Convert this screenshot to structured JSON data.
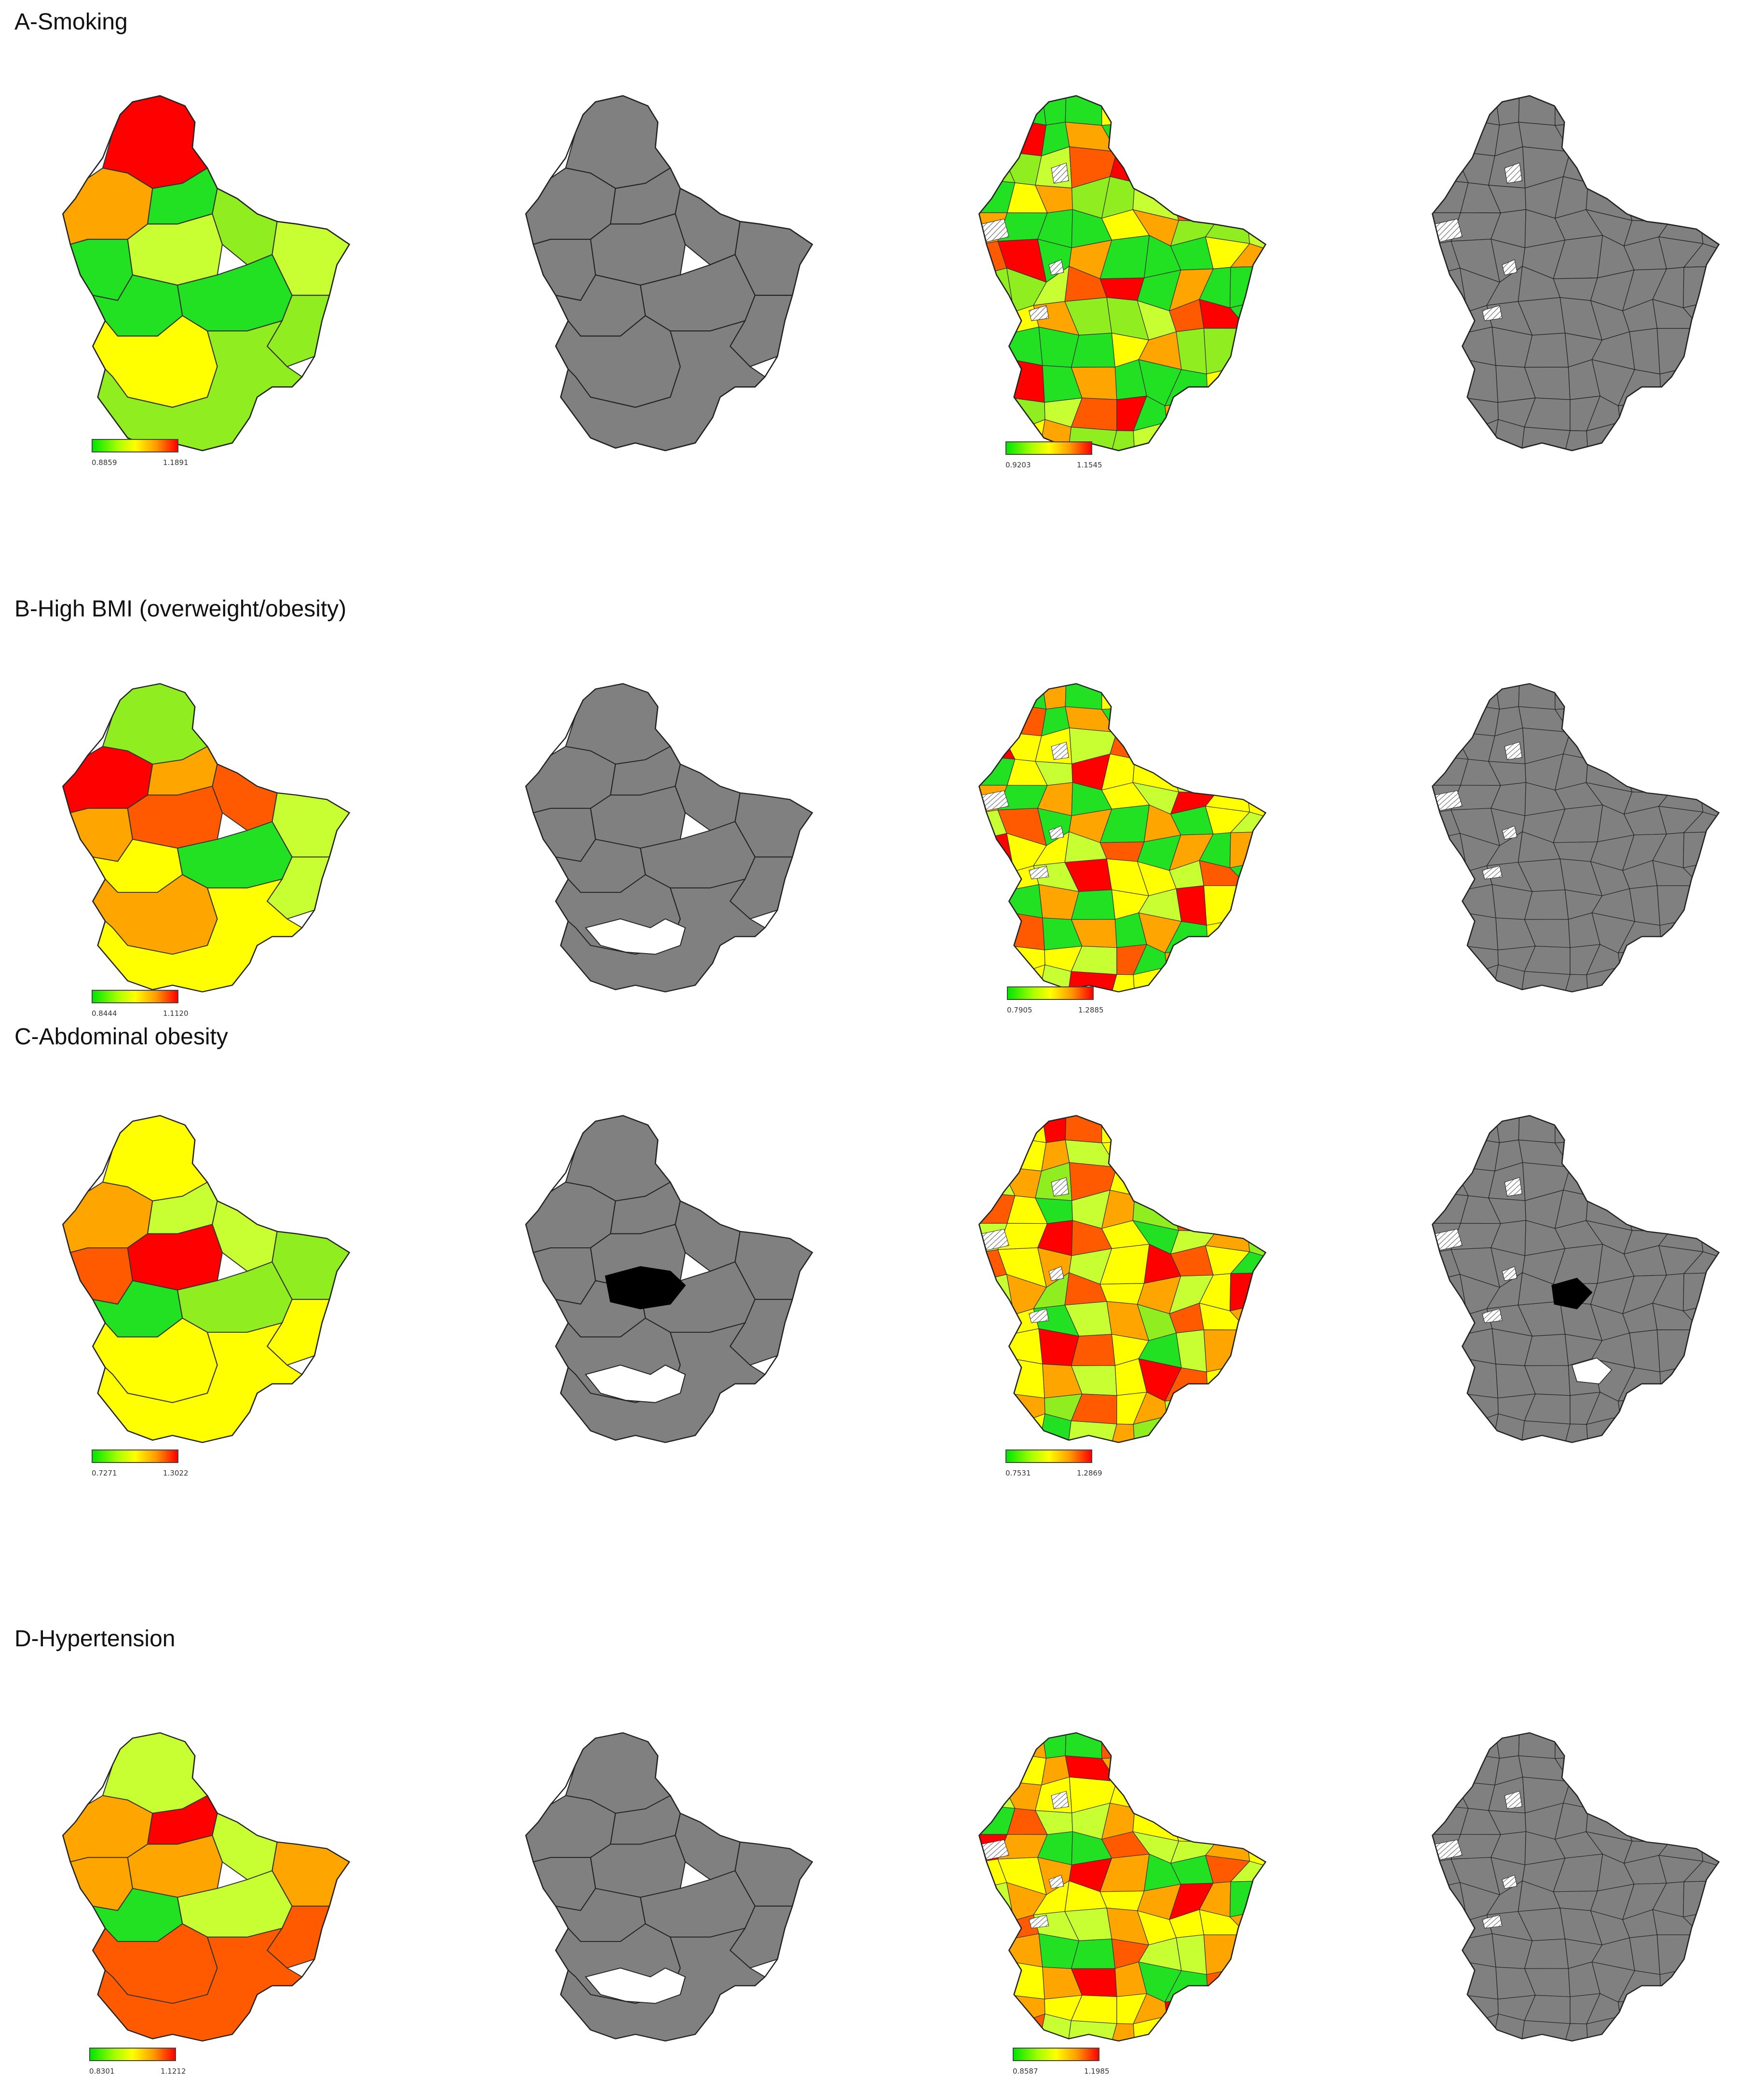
{
  "sections": [
    {
      "title": "A-Smoking",
      "canton_legend": {
        "min": "0.8859",
        "max": "1.1891"
      },
      "commune_legend": {
        "min": "0.9203",
        "max": "1.1545"
      },
      "canton_fills": [
        "red",
        "orange",
        "green",
        "green",
        "yellowgreen",
        "lime",
        "yellowgreen",
        "green",
        "green",
        "lime",
        "yellow",
        "lime"
      ],
      "commune_fills": [
        "orange",
        "orange",
        "red",
        "green",
        "yellowgreen",
        "green",
        "lime",
        "green",
        "yellow",
        "orangered",
        "green",
        "lime"
      ],
      "canton_sig": {
        "hole": false,
        "black": false
      },
      "commune_sig": {
        "hole": false,
        "black": false
      }
    },
    {
      "title": "B-High BMI (overweight/obesity)",
      "canton_legend": {
        "min": "0.8444",
        "max": "1.1120"
      },
      "commune_legend": {
        "min": "0.7905",
        "max": "1.2885"
      },
      "canton_fills": [
        "lime",
        "red",
        "orange",
        "orange",
        "orangered",
        "orangered",
        "yellowgreen",
        "yellow",
        "green",
        "yellowgreen",
        "orange",
        "yellow"
      ],
      "commune_fills": [
        "yellowgreen",
        "orange",
        "yellow",
        "orange",
        "yellowgreen",
        "orangered",
        "green",
        "yellow",
        "green",
        "red",
        "green",
        "yellow"
      ],
      "canton_sig": {
        "hole": true,
        "black": false
      },
      "commune_sig": {
        "hole": false,
        "black": false
      }
    },
    {
      "title": "C-Abdominal obesity",
      "canton_legend": {
        "min": "0.7271",
        "max": "1.3022"
      },
      "commune_legend": {
        "min": "0.7531",
        "max": "1.2869"
      },
      "canton_fills": [
        "yellow",
        "orange",
        "yellowgreen",
        "orangered",
        "red",
        "yellowgreen",
        "lime",
        "green",
        "lime",
        "yellow",
        "yellow",
        "yellow"
      ],
      "commune_fills": [
        "yellowgreen",
        "orange",
        "yellow",
        "orangered",
        "red",
        "orange",
        "yellowgreen",
        "green",
        "yellow",
        "orangered",
        "lime",
        "yellow"
      ],
      "canton_sig": {
        "hole": true,
        "black": true
      },
      "commune_sig": {
        "hole": true,
        "black": true
      }
    },
    {
      "title": "D-Hypertension",
      "canton_legend": {
        "min": "0.8301",
        "max": "1.1212"
      },
      "commune_legend": {
        "min": "0.8587",
        "max": "1.1985"
      },
      "canton_fills": [
        "yellowgreen",
        "orange",
        "red",
        "orange",
        "orange",
        "yellowgreen",
        "orange",
        "green",
        "yellowgreen",
        "orangered",
        "orangered",
        "orangered"
      ],
      "commune_fills": [
        "green",
        "yellow",
        "orange",
        "yellowgreen",
        "orange",
        "orangered",
        "yellow",
        "green",
        "orange",
        "red",
        "yellowgreen",
        "yellow"
      ],
      "canton_sig": {
        "hole": true,
        "black": false
      },
      "commune_sig": {
        "hole": false,
        "black": false
      }
    }
  ],
  "colors": {
    "red": "#ff0000",
    "orangered": "#ff5a00",
    "orange": "#ffa500",
    "yellow": "#ffff00",
    "yellowgreen": "#c8ff32",
    "lime": "#90ee20",
    "green": "#22e022",
    "gray": "#808080",
    "black": "#000000"
  }
}
